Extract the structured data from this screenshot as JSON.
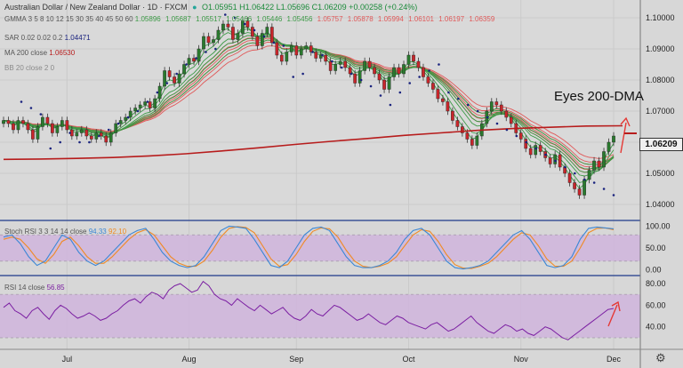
{
  "header": {
    "symbol": "Australian Dollar / New Zealand Dollar · 1D · FXCM",
    "ohlc": "O1.05951  H1.06422  L1.05696  C1.06209  +0.00258 (+0.24%)"
  },
  "legends": {
    "gmma_label": "GMMA 3 5 8 10 12 15 30 35 40 45 50 60",
    "gmma_values": [
      "1.05896",
      "1.05687",
      "1.05517",
      "1.05466",
      "1.05446",
      "1.05456",
      "1.05757",
      "1.05878",
      "1.05994",
      "1.06101",
      "1.06197",
      "1.06359"
    ],
    "sar_label": "SAR 0.02 0.02 0.2",
    "sar_value": "1.04471",
    "ma_label": "MA 200 close",
    "ma_value": "1.06530",
    "bb_label": "BB 20 close 2 0",
    "stoch_label": "Stoch RSI 3 3 14 14 close",
    "stoch_k": "94.33",
    "stoch_d": "92.10",
    "rsi_label": "RSI 14 close",
    "rsi_value": "56.85"
  },
  "last_price": "1.06209",
  "annotation": "Eyes 200-DMA",
  "colors": {
    "candle_up": "#2a7a2e",
    "candle_down": "#c8262b",
    "ma200": "#b71c1c",
    "gmma_short": "#3c9a46",
    "gmma_long": "#e05a5a",
    "sar": "#1a237e",
    "stoch_k": "#3b87d6",
    "stoch_d": "#f08a24",
    "rsi": "#7b1fa2",
    "panel_band": "#c8a8d6"
  },
  "chart_data": [
    {
      "type": "candlestick",
      "x_ticks": [
        "Jul",
        "Aug",
        "Sep",
        "Oct",
        "Nov",
        "Dec"
      ],
      "y_ticks": [
        "1.10000",
        "1.09000",
        "1.08000",
        "1.07000",
        "1.06000",
        "1.05000",
        "1.04000"
      ],
      "ylim": [
        1.036,
        1.104
      ],
      "close_series": [
        1.067,
        1.066,
        1.064,
        1.067,
        1.066,
        1.064,
        1.061,
        1.065,
        1.068,
        1.066,
        1.063,
        1.065,
        1.067,
        1.064,
        1.062,
        1.063,
        1.064,
        1.062,
        1.061,
        1.063,
        1.062,
        1.06,
        1.063,
        1.066,
        1.067,
        1.068,
        1.07,
        1.071,
        1.072,
        1.073,
        1.071,
        1.074,
        1.078,
        1.083,
        1.081,
        1.079,
        1.082,
        1.085,
        1.087,
        1.086,
        1.09,
        1.094,
        1.092,
        1.093,
        1.096,
        1.098,
        1.097,
        1.093,
        1.095,
        1.099,
        1.097,
        1.094,
        1.091,
        1.095,
        1.097,
        1.092,
        1.088,
        1.086,
        1.089,
        1.091,
        1.088,
        1.09,
        1.091,
        1.089,
        1.087,
        1.088,
        1.086,
        1.083,
        1.085,
        1.086,
        1.084,
        1.082,
        1.079,
        1.083,
        1.086,
        1.084,
        1.082,
        1.08,
        1.077,
        1.081,
        1.084,
        1.082,
        1.085,
        1.088,
        1.086,
        1.084,
        1.081,
        1.079,
        1.077,
        1.074,
        1.073,
        1.07,
        1.067,
        1.065,
        1.063,
        1.061,
        1.059,
        1.062,
        1.066,
        1.07,
        1.073,
        1.072,
        1.07,
        1.068,
        1.066,
        1.063,
        1.061,
        1.058,
        1.056,
        1.059,
        1.057,
        1.055,
        1.053,
        1.056,
        1.052,
        1.05,
        1.047,
        1.045,
        1.043,
        1.048,
        1.051,
        1.054,
        1.052,
        1.057,
        1.06,
        1.062
      ],
      "ma200_series": [
        1.0545,
        1.0546,
        1.0548,
        1.0551,
        1.0556,
        1.0563,
        1.0572,
        1.0582,
        1.0593,
        1.0603,
        1.0612,
        1.0622,
        1.063,
        1.0638,
        1.0644,
        1.0648,
        1.0652,
        1.0653
      ],
      "sar_series": [
        1.073,
        1.071,
        1.069,
        1.058,
        1.06,
        1.063,
        1.06,
        1.06,
        1.062,
        1.064,
        1.066,
        1.068,
        1.07,
        1.073,
        1.076,
        1.079,
        1.082,
        1.085,
        1.087,
        1.089,
        1.09,
        1.101,
        1.1,
        1.098,
        1.096,
        1.094,
        1.092,
        1.091,
        1.081,
        1.082,
        1.089,
        1.088,
        1.086,
        1.084,
        1.082,
        1.08,
        1.078,
        1.075,
        1.072,
        1.076,
        1.079,
        1.081,
        1.083,
        1.085,
        1.076,
        1.074,
        1.072,
        1.07,
        1.068,
        1.066,
        1.064,
        1.062,
        1.06,
        1.058,
        1.056,
        1.054,
        1.052,
        1.05,
        1.048,
        1.047,
        1.045,
        1.043
      ]
    },
    {
      "type": "line",
      "name_label": "Stoch RSI",
      "y_ticks": [
        "100.00",
        "50.00",
        "0.00"
      ],
      "ylim": [
        -5,
        105
      ],
      "bands": [
        20,
        80
      ],
      "k": [
        75,
        80,
        60,
        30,
        10,
        20,
        50,
        80,
        70,
        40,
        20,
        10,
        20,
        40,
        60,
        80,
        90,
        95,
        70,
        40,
        20,
        10,
        5,
        10,
        30,
        60,
        90,
        100,
        98,
        95,
        70,
        40,
        10,
        5,
        20,
        50,
        80,
        95,
        98,
        90,
        60,
        30,
        10,
        5,
        5,
        10,
        20,
        40,
        70,
        90,
        95,
        80,
        50,
        20,
        5,
        2,
        5,
        10,
        20,
        40,
        60,
        80,
        90,
        70,
        40,
        10,
        5,
        10,
        30,
        70,
        95,
        98,
        96,
        94
      ],
      "d": [
        70,
        75,
        70,
        50,
        25,
        15,
        35,
        65,
        75,
        55,
        30,
        15,
        15,
        30,
        50,
        70,
        85,
        92,
        80,
        55,
        30,
        15,
        8,
        8,
        20,
        45,
        75,
        95,
        99,
        97,
        85,
        55,
        25,
        8,
        12,
        35,
        65,
        88,
        96,
        94,
        75,
        45,
        20,
        8,
        5,
        8,
        15,
        30,
        55,
        80,
        92,
        88,
        65,
        35,
        12,
        4,
        3,
        8,
        15,
        30,
        50,
        70,
        85,
        80,
        55,
        25,
        8,
        8,
        20,
        50,
        85,
        95,
        96,
        92
      ]
    },
    {
      "type": "line",
      "name_label": "RSI",
      "y_ticks": [
        "80.00",
        "60.00",
        "40.00"
      ],
      "ylim": [
        20,
        85
      ],
      "bands": [
        30,
        70
      ],
      "values": [
        58,
        62,
        55,
        52,
        48,
        55,
        58,
        52,
        47,
        55,
        60,
        57,
        52,
        48,
        50,
        53,
        50,
        46,
        48,
        52,
        55,
        60,
        64,
        66,
        62,
        68,
        72,
        70,
        66,
        74,
        78,
        80,
        76,
        72,
        74,
        82,
        78,
        70,
        66,
        64,
        60,
        66,
        62,
        58,
        55,
        60,
        56,
        52,
        55,
        58,
        52,
        48,
        46,
        50,
        56,
        52,
        50,
        55,
        60,
        58,
        54,
        50,
        46,
        48,
        52,
        48,
        44,
        42,
        46,
        50,
        48,
        44,
        42,
        40,
        38,
        42,
        44,
        40,
        36,
        38,
        42,
        46,
        50,
        44,
        40,
        36,
        34,
        38,
        42,
        40,
        36,
        38,
        34,
        32,
        36,
        40,
        38,
        34,
        30,
        28,
        32,
        36,
        40,
        44,
        48,
        52,
        56,
        57
      ]
    }
  ]
}
